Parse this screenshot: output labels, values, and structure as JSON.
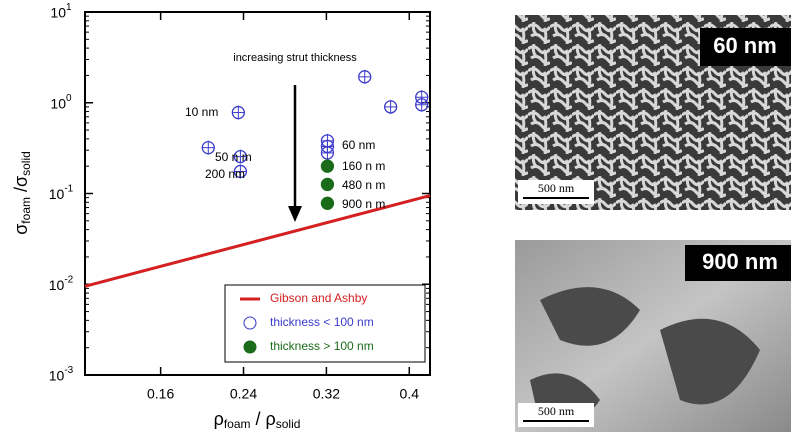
{
  "chart_data": {
    "type": "scatter",
    "ylabel": [
      {
        "text": "σ"
      },
      {
        "text": "foam",
        "sub": true
      },
      {
        "text": " /σ"
      },
      {
        "text": "solid",
        "sub": true
      }
    ],
    "xlabel": [
      {
        "text": "ρ"
      },
      {
        "text": "foam",
        "sub": true
      },
      {
        "text": " / ρ"
      },
      {
        "text": "solid",
        "sub": true
      }
    ],
    "xlim": [
      0.087,
      0.42
    ],
    "xticks": [
      0.16,
      0.24,
      0.32,
      0.4
    ],
    "ylim": [
      0.001,
      10
    ],
    "ylog": true,
    "yticks": [
      {
        "value": 0.001,
        "label": "10^-3"
      },
      {
        "value": 0.01,
        "label": "10^-2"
      },
      {
        "value": 0.1,
        "label": "10^-1"
      },
      {
        "value": 1,
        "label": "10^0"
      },
      {
        "value": 10,
        "label": "10^1"
      }
    ],
    "legend": "lower right",
    "series": [
      {
        "name": "Gibson and Ashby",
        "type": "line",
        "color": "#d42020",
        "x": [
          0.087,
          0.42
        ],
        "values": [
          0.0095,
          0.095
        ]
      },
      {
        "name": "thickness < 100 nm",
        "type": "open",
        "color": "#3a3acc",
        "x": [
          0.235,
          0.206,
          0.237,
          0.237,
          0.321,
          0.321,
          0.321,
          0.357,
          0.382,
          0.412,
          0.412
        ],
        "values": [
          0.78,
          0.32,
          0.255,
          0.175,
          0.38,
          0.33,
          0.28,
          1.93,
          0.9,
          1.15,
          0.95
        ]
      },
      {
        "name": "thickness > 100 nm",
        "type": "filled",
        "color": "#1a6b1a",
        "x": [
          0.321,
          0.321,
          0.321
        ],
        "values": [
          0.2,
          0.126,
          0.078
        ]
      }
    ],
    "annotations": [
      "increasing strut thickness",
      "10 nm",
      "50 n m",
      "200 nm",
      "60 nm",
      "160 n m",
      "480 n m",
      "900 n m"
    ]
  },
  "images": [
    {
      "label": "60 nm",
      "scale": "500 nm"
    },
    {
      "label": "900 nm",
      "scale": "500 nm"
    }
  ]
}
